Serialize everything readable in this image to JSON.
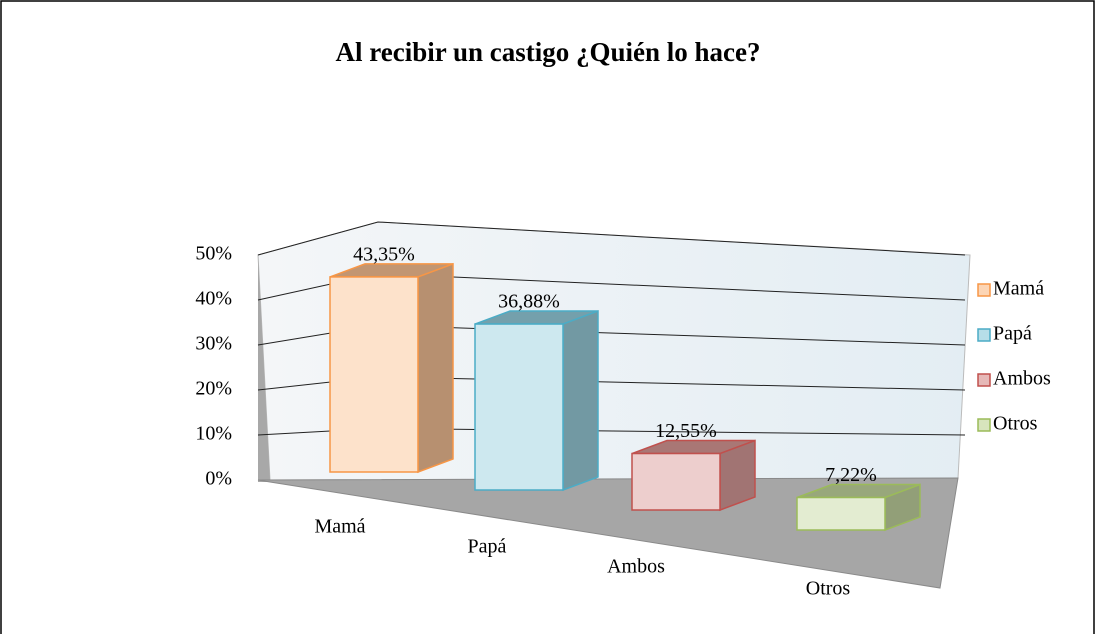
{
  "chart_data": {
    "type": "bar3d",
    "title": "Al recibir un castigo ¿Quién lo hace?",
    "categories": [
      "Mamá",
      "Papá",
      "Ambos",
      "Otros"
    ],
    "values": [
      43.35,
      36.88,
      12.55,
      7.22
    ],
    "value_labels": [
      "43,35%",
      "36,88%",
      "12,55%",
      "7,22%"
    ],
    "colors": [
      "#f79646",
      "#4bacc6",
      "#c0504d",
      "#9bbb59"
    ],
    "ylim": [
      0,
      50
    ],
    "yticks": [
      {
        "value": 0,
        "label": "0%"
      },
      {
        "value": 10,
        "label": "10%"
      },
      {
        "value": 20,
        "label": "20%"
      },
      {
        "value": 30,
        "label": "30%"
      },
      {
        "value": 40,
        "label": "40%"
      },
      {
        "value": 50,
        "label": "50%"
      }
    ],
    "grid": true,
    "legend": "right"
  }
}
